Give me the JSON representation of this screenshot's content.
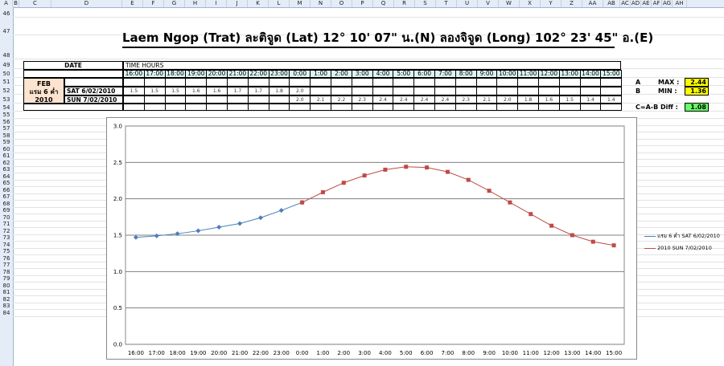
{
  "columns": [
    "A",
    "B",
    "C",
    "D",
    "E",
    "F",
    "G",
    "H",
    "I",
    "J",
    "K",
    "L",
    "M",
    "N",
    "O",
    "P",
    "Q",
    "R",
    "S",
    "T",
    "U",
    "V",
    "W",
    "X",
    "Y",
    "Z",
    "AA",
    "AB",
    "AC",
    "AD",
    "AE",
    "AF",
    "AG",
    "AH"
  ],
  "rows": [
    "46",
    "47",
    "48",
    "49",
    "50",
    "51",
    "52",
    "53",
    "54",
    "55",
    "56",
    "57",
    "58",
    "59",
    "60",
    "61",
    "62",
    "63",
    "64",
    "65",
    "66",
    "67",
    "68",
    "69",
    "70",
    "71",
    "72",
    "73",
    "74",
    "75",
    "76",
    "77",
    "78",
    "79",
    "80",
    "81",
    "82",
    "83",
    "84"
  ],
  "title": "Laem Ngop (Trat) ละติจูด (Lat) 12° 10' 07\" น.(N) ลองจิจูด (Long) 102° 23' 45\" อ.(E)",
  "table": {
    "date_label": "DATE",
    "time_hours_label": "TIME HOURS",
    "month": "FEB",
    "lunar": "แรม 6 ค่ำ",
    "year": "2010",
    "row1_label": "SAT 6/02/2010",
    "row2_label": "SUN 7/02/2010",
    "hours": [
      "16:00",
      "17:00",
      "18:00",
      "19:00",
      "20:00",
      "21:00",
      "22:00",
      "23:00",
      "0:00",
      "1:00",
      "2:00",
      "3:00",
      "4:00",
      "5:00",
      "6:00",
      "7:00",
      "8:00",
      "9:00",
      "10:00",
      "11:00",
      "12:00",
      "13:00",
      "14:00",
      "15:00"
    ],
    "row1_values": [
      "1.5",
      "1.5",
      "1.5",
      "1.6",
      "1.6",
      "1.7",
      "1.7",
      "1.8",
      "2.0",
      "",
      "",
      "",
      "",
      "",
      "",
      "",
      "",
      "",
      "",
      "",
      "",
      "",
      "",
      ""
    ],
    "row2_values": [
      "",
      "",
      "",
      "",
      "",
      "",
      "",
      "",
      "2.0",
      "2.1",
      "2.2",
      "2.3",
      "2.4",
      "2.4",
      "2.4",
      "2.4",
      "2.3",
      "2.1",
      "2.0",
      "1.8",
      "1.6",
      "1.5",
      "1.4",
      "1.4"
    ]
  },
  "stats": {
    "a_label": "A",
    "max_label": "MAX :",
    "max_value": "2.44",
    "b_label": "B",
    "min_label": "MIN :",
    "min_value": "1.36",
    "diff_label": "C=A-B Diff :",
    "diff_value": "1.08"
  },
  "colors": {
    "series1": "#4a7ebb",
    "series2": "#be4b48",
    "yellow": "#ffff00",
    "green": "#66ff66"
  },
  "chart_data": {
    "type": "line",
    "categories": [
      "16:00",
      "17:00",
      "18:00",
      "19:00",
      "20:00",
      "21:00",
      "22:00",
      "23:00",
      "0:00",
      "1:00",
      "2:00",
      "3:00",
      "4:00",
      "5:00",
      "6:00",
      "7:00",
      "8:00",
      "9:00",
      "10:00",
      "11:00",
      "12:00",
      "13:00",
      "14:00",
      "15:00"
    ],
    "series": [
      {
        "name": "แรม 6 ค่ำ SAT 6/02/2010",
        "values": [
          1.47,
          1.49,
          1.52,
          1.56,
          1.61,
          1.66,
          1.74,
          1.84,
          1.95,
          null,
          null,
          null,
          null,
          null,
          null,
          null,
          null,
          null,
          null,
          null,
          null,
          null,
          null,
          null
        ]
      },
      {
        "name": "2010 SUN 7/02/2010",
        "values": [
          null,
          null,
          null,
          null,
          null,
          null,
          null,
          null,
          1.95,
          2.09,
          2.22,
          2.32,
          2.4,
          2.44,
          2.43,
          2.37,
          2.26,
          2.11,
          1.95,
          1.79,
          1.63,
          1.5,
          1.41,
          1.36
        ]
      }
    ],
    "y_ticks": [
      "0.0",
      "0.5",
      "1.0",
      "1.5",
      "2.0",
      "2.5",
      "3.0"
    ],
    "ylim": [
      0,
      3
    ],
    "grid": true,
    "legend": "right"
  }
}
